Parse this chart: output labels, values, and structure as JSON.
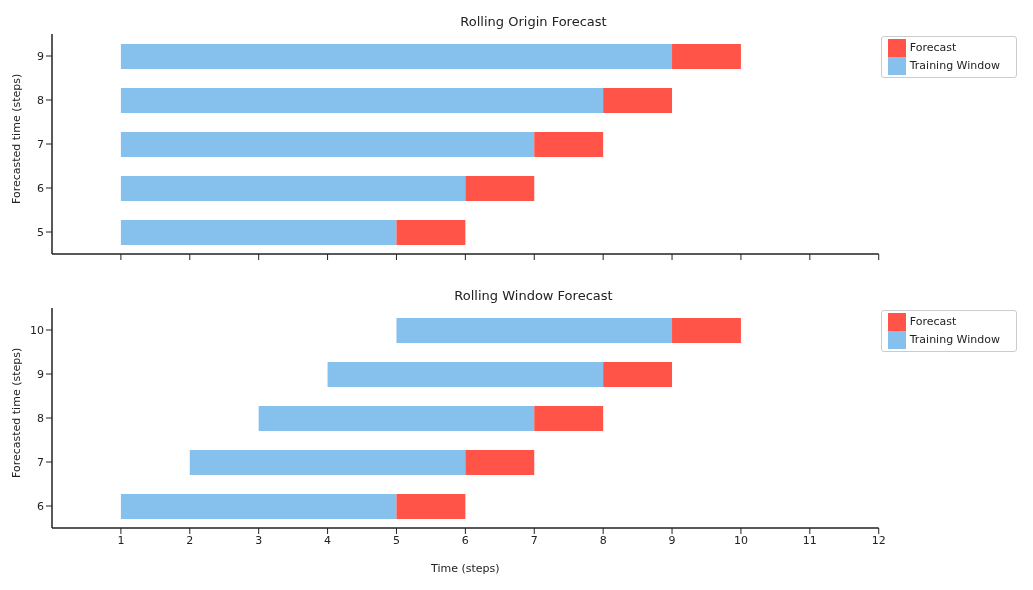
{
  "chart_data": [
    {
      "type": "bar",
      "orientation": "horizontal",
      "title": "Rolling Origin Forecast",
      "ylabel": "Forecasted time (steps)",
      "categories": [
        "9",
        "8",
        "7",
        "6",
        "5"
      ],
      "xlim": [
        0,
        12
      ],
      "xticks": [
        1,
        2,
        3,
        4,
        5,
        6,
        7,
        8,
        9,
        10,
        11,
        12
      ],
      "tick_labels": "y",
      "legend": "top right",
      "grid": false,
      "series": [
        {
          "name": "Training Window",
          "color": "#85c1ec",
          "base": [
            1,
            1,
            1,
            1,
            1
          ],
          "values": [
            8,
            7,
            6,
            5,
            4
          ]
        },
        {
          "name": "Forecast",
          "color": "#ff5447",
          "base": [
            9,
            8,
            7,
            6,
            5
          ],
          "values": [
            1,
            1,
            1,
            1,
            1
          ]
        }
      ]
    },
    {
      "type": "bar",
      "orientation": "horizontal",
      "title": "Rolling Window Forecast",
      "xlabel": "Time (steps)",
      "ylabel": "Forecasted time (steps)",
      "categories": [
        "10",
        "9",
        "8",
        "7",
        "6"
      ],
      "xlim": [
        0,
        12
      ],
      "xticks": [
        1,
        2,
        3,
        4,
        5,
        6,
        7,
        8,
        9,
        10,
        11,
        12
      ],
      "legend": "top right",
      "grid": false,
      "series": [
        {
          "name": "Training Window",
          "color": "#85c1ec",
          "base": [
            5,
            4,
            3,
            2,
            1
          ],
          "values": [
            4,
            4,
            4,
            4,
            4
          ]
        },
        {
          "name": "Forecast",
          "color": "#ff5447",
          "base": [
            9,
            8,
            7,
            6,
            5
          ],
          "values": [
            1,
            1,
            1,
            1,
            1
          ]
        }
      ]
    }
  ]
}
